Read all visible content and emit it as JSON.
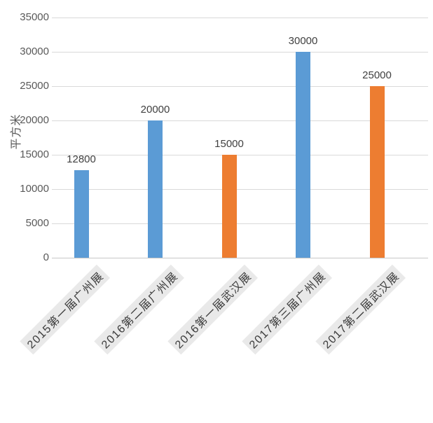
{
  "chart_data": {
    "type": "bar",
    "title": "",
    "xlabel": "",
    "ylabel": "平方米",
    "ylim": [
      0,
      35000
    ],
    "ytick_step": 5000,
    "yticks": [
      0,
      5000,
      10000,
      15000,
      20000,
      25000,
      30000,
      35000
    ],
    "categories": [
      "2015第一届广州展",
      "2016第二届广州展",
      "2016第一届武汉展",
      "2017第三届广州展",
      "2017第二届武汉展"
    ],
    "values": [
      12800,
      20000,
      15000,
      30000,
      25000
    ],
    "data_labels": [
      "12800",
      "20000",
      "15000",
      "30000",
      "25000"
    ],
    "bar_colors": [
      "#5B9BD5",
      "#5B9BD5",
      "#ED7D31",
      "#5B9BD5",
      "#ED7D31"
    ],
    "grid": true,
    "legend": "none"
  },
  "colors": {
    "bar_blue": "#5B9BD5",
    "bar_orange": "#ED7D31",
    "gridline": "#D9D9D9",
    "axis_line": "#C6C6C6",
    "tick_text": "#595959",
    "value_text": "#404040",
    "xlabel_text": "#3B3B3B",
    "xlabel_background": "#E9E9E9",
    "background": "#FFFFFF"
  }
}
